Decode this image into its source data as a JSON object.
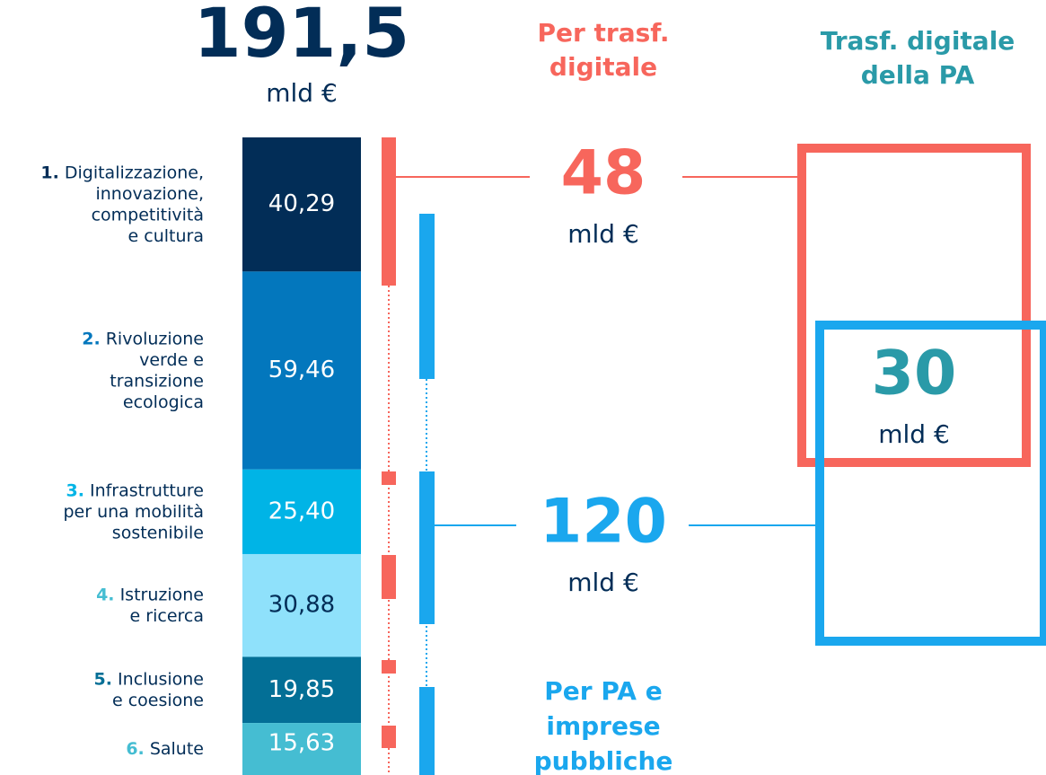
{
  "total": {
    "value": "191,5",
    "unit": "mld €"
  },
  "headers": {
    "digital": [
      "Per trasf.",
      "digitale"
    ],
    "pa": [
      "Trasf. digitale",
      "della PA"
    ],
    "public": [
      "Per PA e",
      "imprese",
      "pubbliche"
    ]
  },
  "segments": [
    {
      "number": "1.",
      "lines": [
        "Digitalizzazione,",
        "innovazione,",
        "competitività",
        "e cultura"
      ],
      "value": 40.29,
      "value_label": "40,29",
      "color": "#022d57"
    },
    {
      "number": "2.",
      "lines": [
        "Rivoluzione",
        "verde e",
        "transizione",
        "ecologica"
      ],
      "value": 59.46,
      "value_label": "59,46",
      "color": "#0377bd"
    },
    {
      "number": "3.",
      "lines": [
        "Infrastrutture",
        "per una mobilità",
        "sostenibile"
      ],
      "value": 25.4,
      "value_label": "25,40",
      "color": "#00b4e6"
    },
    {
      "number": "4.",
      "lines": [
        "Istruzione",
        "e ricerca"
      ],
      "value": 30.88,
      "value_label": "30,88",
      "color": "#8fe1fb"
    },
    {
      "number": "5.",
      "lines": [
        "Inclusione",
        "e coesione"
      ],
      "value": 19.85,
      "value_label": "19,85",
      "color": "#036f96"
    },
    {
      "number": "6.",
      "lines": [
        "Salute"
      ],
      "value": 15.63,
      "value_label": "15,63",
      "color": "#45bdd2"
    }
  ],
  "callouts": {
    "digital": {
      "value": "48",
      "unit": "mld €"
    },
    "public": {
      "value": "120",
      "unit": "mld €"
    },
    "pa": {
      "value": "30",
      "unit": "mld €"
    }
  }
}
